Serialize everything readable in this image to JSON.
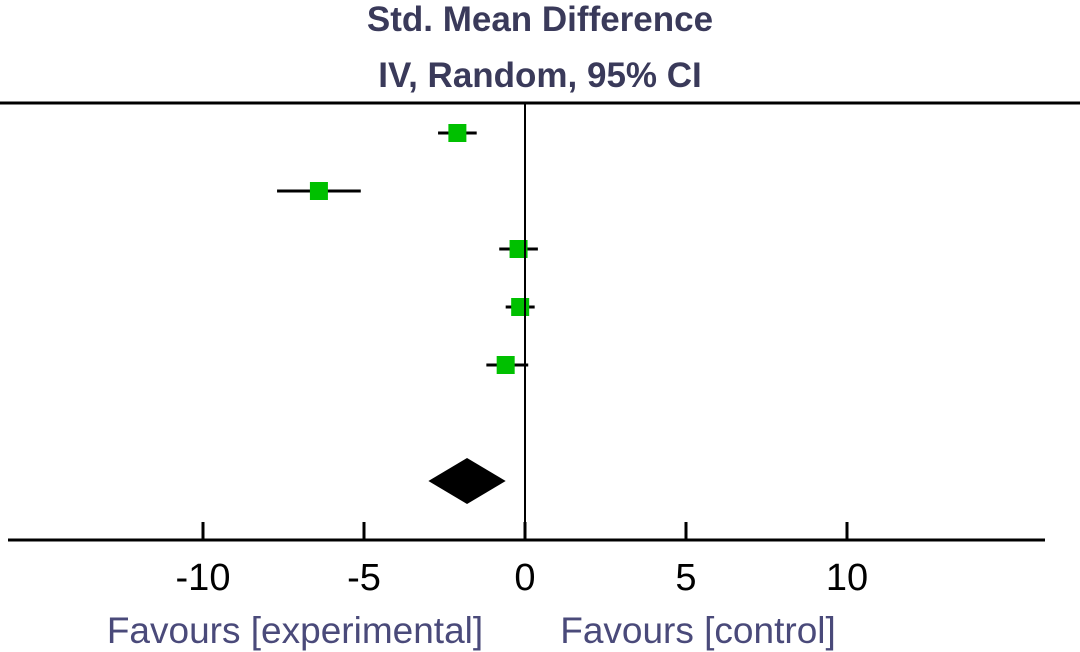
{
  "header": {
    "title": "Std. Mean Difference",
    "subtitle": "IV, Random, 95% CI"
  },
  "chart_data": {
    "type": "scatter",
    "title": "Std. Mean Difference",
    "subtitle": "IV, Random, 95% CI",
    "xlim": [
      -16,
      16
    ],
    "xticks": [
      -10,
      -5,
      0,
      5,
      10
    ],
    "xtick_labels": [
      "-10",
      "-5",
      "0",
      "5",
      "10"
    ],
    "studies": [
      {
        "est": -2.1,
        "lo": -2.7,
        "hi": -1.5
      },
      {
        "est": -6.4,
        "lo": -7.7,
        "hi": -5.1
      },
      {
        "est": -0.2,
        "lo": -0.8,
        "hi": 0.4
      },
      {
        "est": -0.15,
        "lo": -0.6,
        "hi": 0.3
      },
      {
        "est": -0.6,
        "lo": -1.2,
        "hi": 0.1
      }
    ],
    "pooled": {
      "est": -1.8,
      "lo": -3.0,
      "hi": -0.6
    },
    "favours_left": "Favours [experimental]",
    "favours_right": "Favours [control]",
    "colors": {
      "study_marker": "#00c000",
      "pooled": "#000000",
      "labels": "#4a4a7a"
    }
  }
}
